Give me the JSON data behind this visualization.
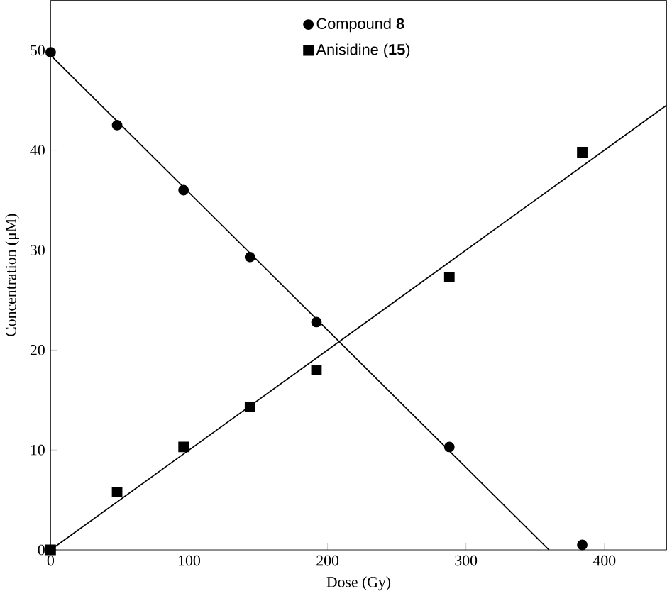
{
  "chart_data": {
    "type": "scatter",
    "xlabel": "Dose (Gy)",
    "ylabel": "Concentration (μM)",
    "xlim": [
      0,
      445
    ],
    "ylim": [
      0,
      55
    ],
    "xticks": [
      0,
      100,
      200,
      300,
      400
    ],
    "yticks": [
      0,
      10,
      20,
      30,
      40,
      50
    ],
    "grid": false,
    "legend": "top",
    "series": [
      {
        "name": "Compound **8**",
        "color": "#000000",
        "marker": "circle",
        "x": [
          0,
          48,
          96,
          144,
          192,
          288,
          384
        ],
        "values": [
          49.8,
          42.5,
          36,
          29.3,
          22.8,
          10.3,
          0.5
        ]
      },
      {
        "name": "Anisidine (**15**)",
        "color": "#000000",
        "marker": "square",
        "x": [
          0,
          48,
          96,
          144,
          192,
          288,
          384
        ],
        "values": [
          0,
          5.8,
          10.3,
          14.3,
          18,
          27.3,
          39.8
        ]
      },
      {
        "type": "line",
        "color": "#000000",
        "marker": "none",
        "x": [
          0,
          360
        ],
        "values": [
          49.5,
          0
        ]
      },
      {
        "type": "line",
        "color": "#000000",
        "marker": "none",
        "x": [
          0,
          445
        ],
        "values": [
          0,
          44.5
        ]
      }
    ]
  }
}
